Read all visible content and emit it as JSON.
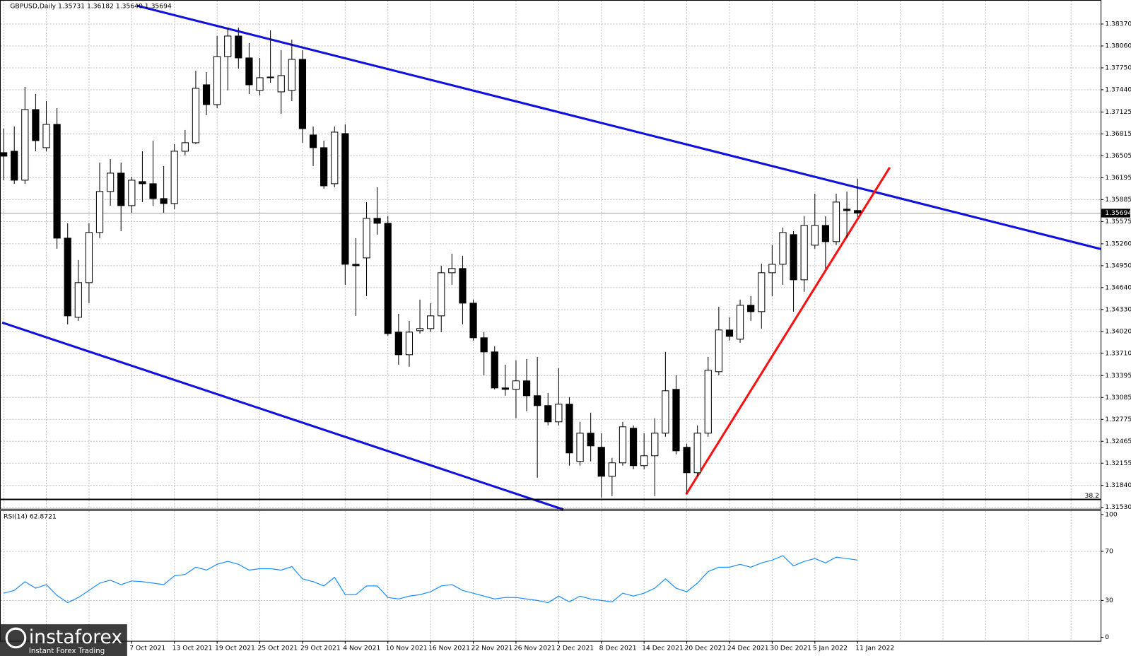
{
  "chart_data": [
    {
      "type": "candlestick",
      "title": "GBPUSD,Daily  1.35731 1.36182 1.35640 1.35694",
      "categories": [
        null,
        null,
        null,
        null,
        null,
        null,
        null,
        null,
        null,
        null,
        null,
        null,
        "7 Oct 2021",
        null,
        null,
        null,
        "13 Oct 2021",
        null,
        null,
        null,
        "19 Oct 2021",
        null,
        null,
        null,
        "25 Oct 2021",
        null,
        null,
        null,
        "29 Oct 2021",
        null,
        null,
        null,
        "4 Nov 2021",
        null,
        null,
        null,
        "10 Nov 2021",
        null,
        null,
        null,
        "16 Nov 2021",
        null,
        null,
        null,
        "22 Nov 2021",
        null,
        null,
        null,
        "26 Nov 2021",
        null,
        null,
        null,
        "2 Dec 2021",
        null,
        null,
        null,
        "8 Dec 2021",
        null,
        null,
        null,
        "14 Dec 2021",
        null,
        null,
        null,
        "20 Dec 2021",
        null,
        null,
        null,
        "24 Dec 2021",
        null,
        null,
        null,
        "30 Dec 2021",
        null,
        null,
        null,
        "5 Jan 2022",
        null,
        null,
        null,
        "11 Jan 2022"
      ],
      "open": [
        1.3655,
        1.3657,
        1.3616,
        1.3716,
        1.3662,
        1.3695,
        1.3534,
        1.3422,
        1.3471,
        1.3542,
        1.36,
        1.3626,
        1.358,
        1.3614,
        1.3611,
        1.359,
        1.3583,
        1.3657,
        1.3669,
        1.3751,
        1.3723,
        1.3791,
        1.382,
        1.3789,
        1.3743,
        1.3762,
        1.3741,
        1.3743,
        1.3787,
        1.368,
        1.3662,
        1.3611,
        1.3682,
        1.3497,
        1.3506,
        1.3562,
        1.3555,
        1.3401,
        1.3369,
        1.3403,
        1.3406,
        1.3424,
        1.3485,
        1.3491,
        1.3442,
        1.3393,
        1.3373,
        1.3322,
        1.332,
        1.3332,
        1.3311,
        1.3297,
        1.3274,
        1.3299,
        1.3218,
        1.3258,
        1.3238,
        1.3197,
        1.3216,
        1.3265,
        1.3212,
        1.3226,
        1.3258,
        1.332,
        1.3238,
        1.3202,
        1.3258,
        1.3345,
        1.3404,
        1.3391,
        1.3439,
        1.343,
        1.3485,
        1.3497,
        1.3539,
        1.3475,
        1.3524,
        1.3552,
        1.3529,
        1.3575,
        1.35731
      ],
      "high": [
        1.3689,
        1.3692,
        1.3748,
        1.3738,
        1.3728,
        1.3718,
        1.3555,
        1.3503,
        1.3555,
        1.3641,
        1.3646,
        1.3641,
        1.3621,
        1.3657,
        1.3672,
        1.3636,
        1.3667,
        1.3687,
        1.3771,
        1.3769,
        1.382,
        1.3832,
        1.3832,
        1.381,
        1.3789,
        1.3828,
        1.38,
        1.3815,
        1.38,
        1.3692,
        1.3672,
        1.3692,
        1.3695,
        1.3534,
        1.3585,
        1.3606,
        1.3565,
        1.3427,
        1.3417,
        1.3447,
        1.3442,
        1.3495,
        1.3512,
        1.3509,
        1.3447,
        1.3401,
        1.3381,
        1.3355,
        1.3361,
        1.3363,
        1.3366,
        1.3315,
        1.335,
        1.3309,
        1.3274,
        1.3287,
        1.3258,
        1.3223,
        1.3274,
        1.3269,
        1.3258,
        1.3279,
        1.3373,
        1.334,
        1.3243,
        1.3269,
        1.3366,
        1.3437,
        1.3422,
        1.3447,
        1.3452,
        1.3498,
        1.3524,
        1.3549,
        1.3544,
        1.3565,
        1.3597,
        1.3565,
        1.3597,
        1.36,
        1.36182
      ],
      "low": [
        1.3616,
        1.3611,
        1.3611,
        1.3657,
        1.3657,
        1.3519,
        1.3412,
        1.3417,
        1.3442,
        1.3534,
        1.358,
        1.3544,
        1.357,
        1.3585,
        1.358,
        1.357,
        1.3575,
        1.3651,
        1.3667,
        1.3708,
        1.3718,
        1.3743,
        1.3774,
        1.3738,
        1.3736,
        1.3754,
        1.371,
        1.3728,
        1.3669,
        1.3636,
        1.3604,
        1.3606,
        1.3468,
        1.3424,
        1.3452,
        1.3539,
        1.3396,
        1.3355,
        1.3352,
        1.3399,
        1.3401,
        1.3401,
        1.3468,
        1.3412,
        1.3389,
        1.334,
        1.332,
        1.3311,
        1.3279,
        1.3289,
        1.3195,
        1.3269,
        1.3269,
        1.3212,
        1.3212,
        1.3218,
        1.3167,
        1.3169,
        1.3212,
        1.3207,
        1.3207,
        1.3169,
        1.3253,
        1.3228,
        1.3172,
        1.3197,
        1.3253,
        1.334,
        1.3389,
        1.3386,
        1.3417,
        1.3406,
        1.3452,
        1.3468,
        1.343,
        1.3458,
        1.3519,
        1.3491,
        1.3524,
        1.3534,
        1.3564
      ],
      "close": [
        1.365,
        1.3616,
        1.3716,
        1.3672,
        1.3695,
        1.3534,
        1.3424,
        1.3471,
        1.3542,
        1.36,
        1.3626,
        1.358,
        1.3616,
        1.3611,
        1.359,
        1.3583,
        1.3657,
        1.3669,
        1.3746,
        1.3723,
        1.3791,
        1.382,
        1.3789,
        1.3751,
        1.3761,
        1.3761,
        1.3764,
        1.3787,
        1.3689,
        1.3662,
        1.3608,
        1.3684,
        1.3497,
        1.3495,
        1.3562,
        1.3555,
        1.3399,
        1.3369,
        1.3401,
        1.3406,
        1.3424,
        1.3485,
        1.3491,
        1.3442,
        1.3393,
        1.3373,
        1.3322,
        1.332,
        1.3332,
        1.3311,
        1.3297,
        1.3274,
        1.3299,
        1.323,
        1.3258,
        1.324,
        1.3197,
        1.3216,
        1.3267,
        1.3212,
        1.3226,
        1.3258,
        1.3318,
        1.3233,
        1.3202,
        1.3258,
        1.3347,
        1.3404,
        1.3395,
        1.3439,
        1.343,
        1.3485,
        1.3497,
        1.3542,
        1.3475,
        1.3552,
        1.3552,
        1.3529,
        1.3585,
        1.3573,
        1.35694
      ],
      "ylim": [
        1.3151,
        1.3871
      ],
      "yticks": [
        {
          "value": 1.3837,
          "label": "1.38370"
        },
        {
          "value": 1.3806,
          "label": "1.38060"
        },
        {
          "value": 1.3775,
          "label": "1.37750"
        },
        {
          "value": 1.3744,
          "label": "1.37440"
        },
        1.37125,
        1.36815,
        1.36505,
        1.36195,
        1.35885,
        1.35575,
        {
          "value": 1.3526,
          "label": "1.35260"
        },
        {
          "value": 1.3495,
          "label": "1.34950"
        },
        {
          "value": 1.3464,
          "label": "1.34640"
        },
        {
          "value": 1.3433,
          "label": "1.34330"
        },
        {
          "value": 1.3402,
          "label": "1.34020"
        },
        {
          "value": 1.3371,
          "label": "1.33710"
        },
        1.33395,
        1.33085,
        1.32775,
        1.32465,
        1.32155,
        {
          "value": 1.3184,
          "label": "1.31840"
        },
        {
          "value": 1.3153,
          "label": "1.31530"
        }
      ],
      "current_price": {
        "value": 1.35694,
        "label": "1.35694"
      },
      "annotation": "38.2",
      "grid": true,
      "logo": {
        "name": "instaforex",
        "tagline": "Instant Forex Trading"
      }
    },
    {
      "type": "line",
      "title": "RSI(14) 62.8721",
      "color": "#1e90ff",
      "values": [
        35.9,
        38.2,
        45.3,
        40,
        42.9,
        34.1,
        28.2,
        32.4,
        38.2,
        44.1,
        46.5,
        42.9,
        45.9,
        45.3,
        44.1,
        42.9,
        50,
        51.2,
        57.1,
        54.7,
        59.4,
        61.8,
        59.4,
        54.7,
        55.9,
        55.9,
        54.7,
        57.6,
        47.6,
        45.3,
        41.8,
        48.8,
        34.7,
        34.7,
        41.8,
        41.8,
        32.4,
        31.2,
        33.5,
        34.7,
        37.1,
        41.8,
        42.9,
        38.2,
        35.9,
        33.5,
        31.2,
        32.4,
        32.4,
        31.2,
        30,
        28.2,
        33.5,
        28.8,
        33.5,
        31.2,
        30,
        28.8,
        35.9,
        33.5,
        35.9,
        40,
        47.6,
        40,
        37.1,
        44.1,
        53.5,
        57.1,
        57.1,
        59.4,
        57.1,
        60.6,
        62.9,
        66.5,
        58.2,
        61.8,
        64.1,
        60.6,
        65.3,
        64.1,
        62.8721
      ],
      "ylim": [
        0,
        100
      ],
      "yticks": [
        0,
        30,
        70,
        100
      ],
      "grid": true
    }
  ]
}
